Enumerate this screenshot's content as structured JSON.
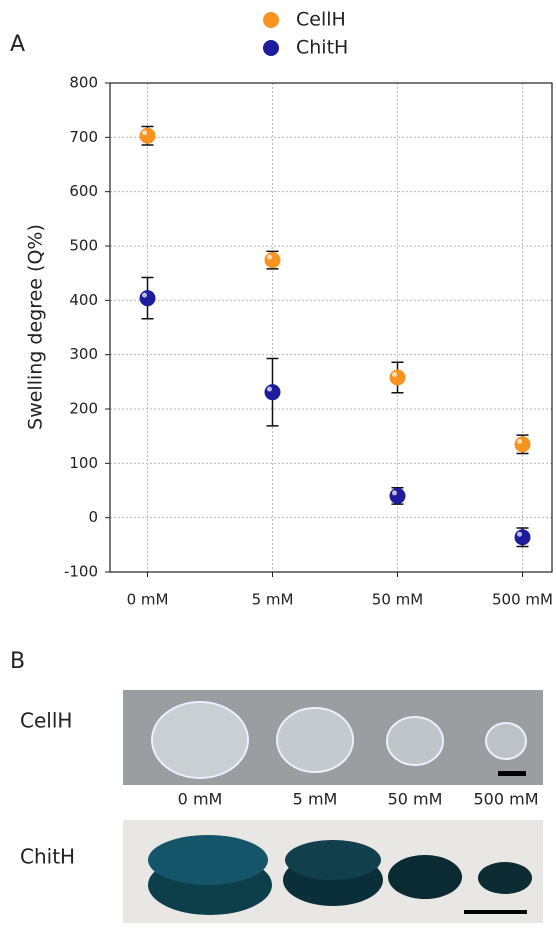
{
  "panel_labels": [
    "A",
    "B"
  ],
  "chart_data": {
    "type": "scatter",
    "y_label": "Swelling degree (Q%)",
    "categories": [
      "0 mM",
      "5 mM",
      "50 mM",
      "500 mM"
    ],
    "series": [
      {
        "name": "CellH",
        "color": "#f7931e",
        "values": [
          703,
          474,
          258,
          135
        ],
        "errors": [
          17,
          16,
          28,
          17
        ]
      },
      {
        "name": "ChitH",
        "color": "#1c1c9c",
        "values": [
          404,
          231,
          40,
          -36
        ],
        "errors": [
          38,
          62,
          15,
          17
        ]
      }
    ],
    "ylim": [
      -100,
      800
    ],
    "yticks": [
      -100,
      0,
      100,
      200,
      300,
      400,
      500,
      600,
      700,
      800
    ],
    "grid": true
  },
  "photo_panel": {
    "rows": [
      "CellH",
      "ChitH"
    ],
    "columns": [
      "0 mM",
      "5 mM",
      "50 mM",
      "500 mM"
    ]
  }
}
